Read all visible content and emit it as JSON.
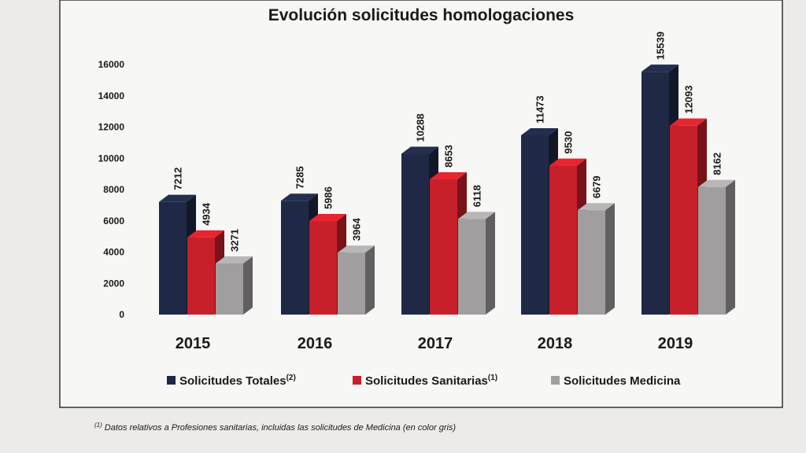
{
  "chart_data": {
    "type": "bar3d",
    "title": "Evolución solicitudes homologaciones",
    "categories": [
      "2015",
      "2016",
      "2017",
      "2018",
      "2019"
    ],
    "series": [
      {
        "name": "Solicitudes Totales",
        "note": "(2)",
        "color": "#1f2845",
        "values": [
          7212,
          7285,
          10288,
          11473,
          15539
        ]
      },
      {
        "name": "Solicitudes Sanitarias",
        "note": "(1)",
        "color": "#c8202b",
        "values": [
          4934,
          5986,
          8653,
          9530,
          12093
        ]
      },
      {
        "name": "Solicitudes Medicina",
        "color": "#a19e9f",
        "values": [
          3271,
          3964,
          6118,
          6679,
          8162
        ]
      }
    ],
    "ylim": [
      0,
      16000
    ],
    "yticks": [
      0,
      2000,
      4000,
      6000,
      8000,
      10000,
      12000,
      14000,
      16000
    ],
    "grid": false
  },
  "footnote": {
    "mark": "(1)",
    "text": "Datos relativos a Profesiones sanitarias, incluidas las solicitudes de Medicina (en color gris)"
  }
}
